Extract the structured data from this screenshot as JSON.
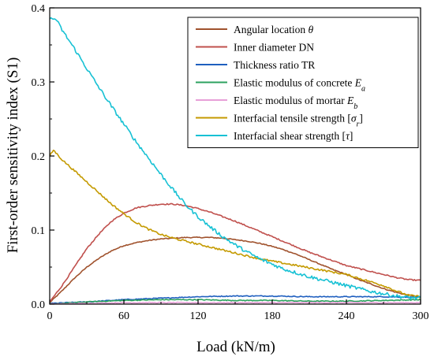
{
  "chart_data": {
    "type": "line",
    "xlabel": "Load (kN/m)",
    "ylabel": "First-order sensitivity index (S1)",
    "xlim": [
      0,
      300
    ],
    "ylim": [
      0,
      0.4
    ],
    "x_ticks": [
      0,
      60,
      120,
      180,
      240,
      300
    ],
    "y_ticks": [
      0.0,
      0.1,
      0.2,
      0.3,
      0.4
    ],
    "x_tick_labels": [
      "0",
      "60",
      "120",
      "180",
      "240",
      "300"
    ],
    "y_tick_labels": [
      "0.0",
      "0.1",
      "0.2",
      "0.3",
      "0.4"
    ],
    "grid": false,
    "legend_position": "top-right",
    "series": [
      {
        "name": "Angular location θ",
        "legend_parts": [
          {
            "t": "Angular location "
          },
          {
            "t": "θ",
            "it": true
          }
        ],
        "color": "#a0522d",
        "x": [
          0,
          10,
          20,
          30,
          40,
          50,
          60,
          70,
          80,
          90,
          100,
          110,
          120,
          130,
          140,
          150,
          160,
          170,
          180,
          190,
          200,
          210,
          220,
          230,
          240,
          250,
          260,
          270,
          280,
          290,
          300
        ],
        "values": [
          0.002,
          0.018,
          0.035,
          0.05,
          0.062,
          0.072,
          0.079,
          0.083,
          0.086,
          0.088,
          0.089,
          0.09,
          0.09,
          0.09,
          0.089,
          0.087,
          0.085,
          0.082,
          0.078,
          0.073,
          0.067,
          0.06,
          0.053,
          0.046,
          0.04,
          0.033,
          0.027,
          0.021,
          0.016,
          0.012,
          0.009
        ]
      },
      {
        "name": "Inner diameter DN",
        "legend_parts": [
          {
            "t": "Inner diameter DN"
          }
        ],
        "color": "#c0504d",
        "x": [
          0,
          10,
          20,
          30,
          40,
          50,
          60,
          70,
          80,
          90,
          100,
          110,
          120,
          130,
          140,
          150,
          160,
          170,
          180,
          190,
          200,
          210,
          220,
          230,
          240,
          250,
          260,
          270,
          280,
          290,
          300
        ],
        "values": [
          0.003,
          0.025,
          0.05,
          0.075,
          0.095,
          0.112,
          0.123,
          0.13,
          0.133,
          0.135,
          0.135,
          0.133,
          0.129,
          0.124,
          0.118,
          0.112,
          0.105,
          0.098,
          0.091,
          0.084,
          0.077,
          0.07,
          0.064,
          0.058,
          0.052,
          0.048,
          0.044,
          0.04,
          0.036,
          0.033,
          0.032
        ]
      },
      {
        "name": "Thickness ratio TR",
        "legend_parts": [
          {
            "t": "Thickness ratio TR"
          }
        ],
        "color": "#1f5fbf",
        "x": [
          0,
          30,
          60,
          90,
          120,
          150,
          180,
          210,
          240,
          270,
          300
        ],
        "values": [
          0.001,
          0.003,
          0.006,
          0.008,
          0.01,
          0.011,
          0.011,
          0.01,
          0.01,
          0.01,
          0.009
        ]
      },
      {
        "name": "Elastic modulus of concrete Ea",
        "legend_parts": [
          {
            "t": "Elastic modulus of concrete "
          },
          {
            "t": "E",
            "it": true
          },
          {
            "t": "a",
            "it": true,
            "sub": true
          }
        ],
        "color": "#2ca25f",
        "x": [
          0,
          30,
          60,
          90,
          120,
          150,
          180,
          210,
          240,
          270,
          300
        ],
        "values": [
          0.0,
          0.003,
          0.005,
          0.006,
          0.006,
          0.005,
          0.005,
          0.004,
          0.004,
          0.005,
          0.006
        ]
      },
      {
        "name": "Elastic modulus of mortar Eb",
        "legend_parts": [
          {
            "t": "Elastic modulus of mortar "
          },
          {
            "t": "E",
            "it": true
          },
          {
            "t": "b",
            "it": true,
            "sub": true
          }
        ],
        "color": "#e8a0d8",
        "x": [
          0,
          30,
          60,
          90,
          120,
          150,
          180,
          210,
          240,
          270,
          300
        ],
        "values": [
          0.0,
          0.001,
          0.002,
          0.002,
          0.002,
          0.002,
          0.002,
          0.002,
          0.002,
          0.002,
          0.002
        ]
      },
      {
        "name": "Interfacial tensile strength [σr]",
        "legend_parts": [
          {
            "t": "Interfacial tensile strength ["
          },
          {
            "t": "σ",
            "it": true
          },
          {
            "t": "r",
            "it": true,
            "sub": true
          },
          {
            "t": "]"
          }
        ],
        "color": "#c49a00",
        "x": [
          0,
          3,
          10,
          20,
          30,
          40,
          50,
          60,
          70,
          80,
          90,
          100,
          110,
          120,
          130,
          140,
          150,
          160,
          170,
          180,
          190,
          200,
          210,
          220,
          230,
          240,
          250,
          260,
          270,
          280,
          290,
          300
        ],
        "values": [
          0.2,
          0.208,
          0.195,
          0.18,
          0.165,
          0.15,
          0.135,
          0.122,
          0.11,
          0.101,
          0.094,
          0.089,
          0.085,
          0.081,
          0.077,
          0.073,
          0.069,
          0.065,
          0.061,
          0.058,
          0.055,
          0.052,
          0.049,
          0.046,
          0.043,
          0.04,
          0.035,
          0.03,
          0.025,
          0.018,
          0.012,
          0.01
        ]
      },
      {
        "name": "Interfacial shear strength [τ]",
        "legend_parts": [
          {
            "t": "Interfacial shear strength ["
          },
          {
            "t": "τ",
            "it": true
          },
          {
            "t": "]"
          }
        ],
        "color": "#17c1d4",
        "x": [
          0,
          5,
          10,
          20,
          30,
          40,
          50,
          60,
          70,
          80,
          90,
          100,
          110,
          120,
          130,
          140,
          150,
          160,
          170,
          180,
          190,
          200,
          210,
          220,
          230,
          240,
          250,
          260,
          270,
          280,
          290,
          300
        ],
        "values": [
          0.385,
          0.385,
          0.37,
          0.345,
          0.318,
          0.292,
          0.267,
          0.243,
          0.219,
          0.197,
          0.175,
          0.154,
          0.134,
          0.118,
          0.104,
          0.091,
          0.08,
          0.07,
          0.061,
          0.054,
          0.047,
          0.042,
          0.037,
          0.033,
          0.029,
          0.025,
          0.021,
          0.017,
          0.014,
          0.011,
          0.009,
          0.008
        ]
      }
    ]
  }
}
